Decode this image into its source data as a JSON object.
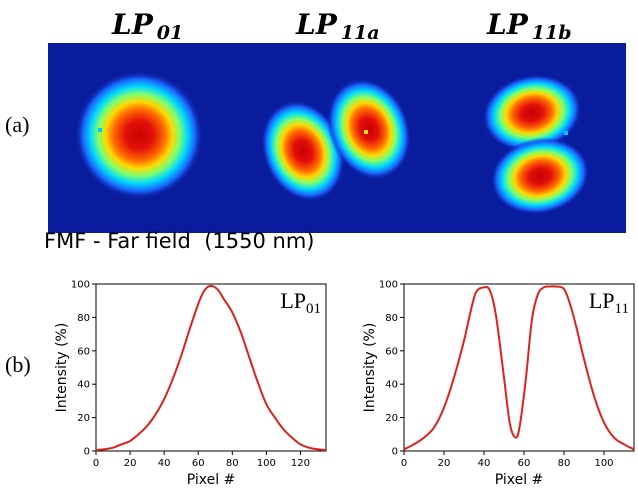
{
  "figure": {
    "panel_a_label": "(a)",
    "panel_b_label": "(b)",
    "caption": "FMF - Far field  (1550 nm)",
    "modes": [
      {
        "base": "LP",
        "sub": "01"
      },
      {
        "base": "LP",
        "sub": "11a"
      },
      {
        "base": "LP",
        "sub": "11b"
      }
    ],
    "colormap": "jet",
    "colors": {
      "curve": "#e0201a",
      "background": "#0a1c9e"
    }
  },
  "chart_data": [
    {
      "type": "line",
      "label_base": "LP",
      "label_sub": "01",
      "xlabel": "Pixel #",
      "ylabel": "Intensity (%)",
      "xlim": [
        0,
        135
      ],
      "ylim": [
        0,
        100
      ],
      "xticks": [
        "0",
        "20",
        "40",
        "60",
        "80",
        "100",
        "120"
      ],
      "yticks": [
        "0",
        "20",
        "40",
        "60",
        "80",
        "100"
      ],
      "x": [
        0,
        5,
        10,
        15,
        20,
        25,
        30,
        35,
        40,
        45,
        50,
        55,
        60,
        63,
        66,
        69,
        72,
        75,
        80,
        85,
        90,
        95,
        100,
        105,
        110,
        115,
        120,
        125,
        130,
        135
      ],
      "y": [
        0.5,
        1,
        2,
        4,
        6,
        10,
        15,
        22,
        31,
        43,
        57,
        73,
        88,
        95,
        98.5,
        98.5,
        96,
        91,
        83,
        71,
        56,
        41,
        28,
        20,
        13,
        8,
        4,
        2,
        1,
        0.5
      ]
    },
    {
      "type": "line",
      "label_base": "LP",
      "label_sub": "11",
      "xlabel": "Pixel #",
      "ylabel": "Intensity (%)",
      "xlim": [
        0,
        115
      ],
      "ylim": [
        0,
        100
      ],
      "xticks": [
        "0",
        "20",
        "40",
        "60",
        "80",
        "100"
      ],
      "yticks": [
        "0",
        "20",
        "40",
        "60",
        "80",
        "100"
      ],
      "x": [
        0,
        5,
        10,
        15,
        20,
        25,
        30,
        33,
        36,
        40,
        43,
        46,
        50,
        53,
        56,
        58,
        61,
        64,
        67,
        70,
        73,
        76,
        80,
        83,
        86,
        90,
        95,
        100,
        105,
        110,
        115
      ],
      "y": [
        1,
        4,
        8,
        14,
        26,
        44,
        66,
        82,
        95,
        98,
        96,
        81,
        44,
        16,
        8,
        16,
        44,
        79,
        94,
        98,
        98.5,
        98.5,
        97,
        88,
        75,
        55,
        33,
        17,
        8,
        4,
        1
      ]
    }
  ]
}
